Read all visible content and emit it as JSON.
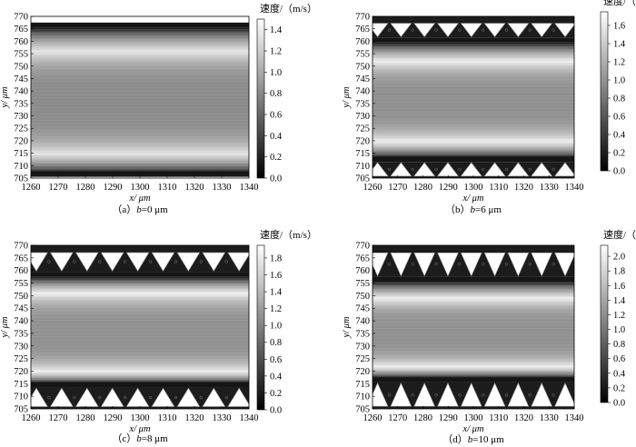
{
  "figure": {
    "x_unit_label": "x/ μm",
    "y_unit_label": "y/ μm",
    "colorbar_title": "速度/（m/s）"
  },
  "chart_data": [
    {
      "type": "heatmap",
      "caption": "（a）b=0 μm",
      "caption_prefix": "（a）",
      "caption_var": "b",
      "caption_value": "=0 μm",
      "xlabel": "x/ μm",
      "ylabel": "y/ μm",
      "colorbar_label": "速度/（m/s）",
      "xlim": [
        1260,
        1340
      ],
      "ylim": [
        705,
        770
      ],
      "xticks": [
        1260,
        1270,
        1280,
        1290,
        1300,
        1310,
        1320,
        1330,
        1340
      ],
      "yticks": [
        705,
        710,
        715,
        720,
        725,
        730,
        735,
        740,
        745,
        750,
        755,
        760,
        765,
        770
      ],
      "colorbar_range": [
        0,
        1.5
      ],
      "colorbar_ticks": [
        0,
        0.2,
        0.4,
        0.6,
        0.8,
        1.0,
        1.2,
        1.4
      ],
      "colormap": [
        "#000000",
        "#ffffff"
      ],
      "groove_depth_um": 0,
      "channel_walls_um": [
        707.5,
        765.5
      ],
      "peak_velocity_positions_um": [
        715,
        756
      ],
      "peak_velocity": 1.4
    },
    {
      "type": "heatmap",
      "caption": "（b）b=6 μm",
      "caption_prefix": "（b）",
      "caption_var": "b",
      "caption_value": "=6 μm",
      "xlabel": "x/ μm",
      "ylabel": "y/ μm",
      "colorbar_label": "速度/（m/s）",
      "xlim": [
        1260,
        1340
      ],
      "ylim": [
        705,
        770
      ],
      "xticks": [
        1260,
        1270,
        1280,
        1290,
        1300,
        1310,
        1320,
        1330,
        1340
      ],
      "yticks": [
        705,
        710,
        715,
        720,
        725,
        730,
        735,
        740,
        745,
        750,
        755,
        760,
        765,
        770
      ],
      "colorbar_range": [
        0,
        1.75
      ],
      "colorbar_ticks": [
        0,
        0.2,
        0.4,
        0.6,
        0.8,
        1.0,
        1.2,
        1.4,
        1.6
      ],
      "colormap": [
        "#000000",
        "#ffffff"
      ],
      "groove_depth_um": 6,
      "channel_walls_um": [
        713.5,
        759.5
      ],
      "peak_velocity_positions_um": [
        720,
        752
      ],
      "peak_velocity": 1.7
    },
    {
      "type": "heatmap",
      "caption": "（c）b=8 μm",
      "caption_prefix": "（c）",
      "caption_var": "b",
      "caption_value": "=8 μm",
      "xlabel": "x/ μm",
      "ylabel": "y/ μm",
      "colorbar_label": "速度/（m/s）",
      "xlim": [
        1260,
        1340
      ],
      "ylim": [
        705,
        770
      ],
      "xticks": [
        1260,
        1270,
        1280,
        1290,
        1300,
        1310,
        1320,
        1330,
        1340
      ],
      "yticks": [
        705,
        710,
        715,
        720,
        725,
        730,
        735,
        740,
        745,
        750,
        755,
        760,
        765,
        770
      ],
      "colorbar_range": [
        0,
        1.95
      ],
      "colorbar_ticks": [
        0,
        0.2,
        0.4,
        0.6,
        0.8,
        1.0,
        1.2,
        1.4,
        1.6,
        1.8
      ],
      "colormap": [
        "#000000",
        "#ffffff"
      ],
      "groove_depth_um": 8,
      "channel_walls_um": [
        715.5,
        757.5
      ],
      "peak_velocity_positions_um": [
        720,
        751
      ],
      "peak_velocity": 1.9
    },
    {
      "type": "heatmap",
      "caption": "（d）b=10 μm",
      "caption_prefix": "（d）",
      "caption_var": "b",
      "caption_value": "=10 μm",
      "xlabel": "x/ μm",
      "ylabel": "y/ μm",
      "colorbar_label": "速度/（m/s）",
      "xlim": [
        1260,
        1340
      ],
      "ylim": [
        705,
        770
      ],
      "xticks": [
        1260,
        1270,
        1280,
        1290,
        1300,
        1310,
        1320,
        1330,
        1340
      ],
      "yticks": [
        705,
        710,
        715,
        720,
        725,
        730,
        735,
        740,
        745,
        750,
        755,
        760,
        765,
        770
      ],
      "colorbar_range": [
        0,
        2.15
      ],
      "colorbar_ticks": [
        0,
        0.2,
        0.4,
        0.6,
        0.8,
        1.0,
        1.2,
        1.4,
        1.6,
        1.8,
        2.0
      ],
      "colormap": [
        "#000000",
        "#ffffff"
      ],
      "groove_depth_um": 10,
      "channel_walls_um": [
        717.5,
        755.5
      ],
      "peak_velocity_positions_um": [
        722,
        749
      ],
      "peak_velocity": 2.1
    }
  ]
}
